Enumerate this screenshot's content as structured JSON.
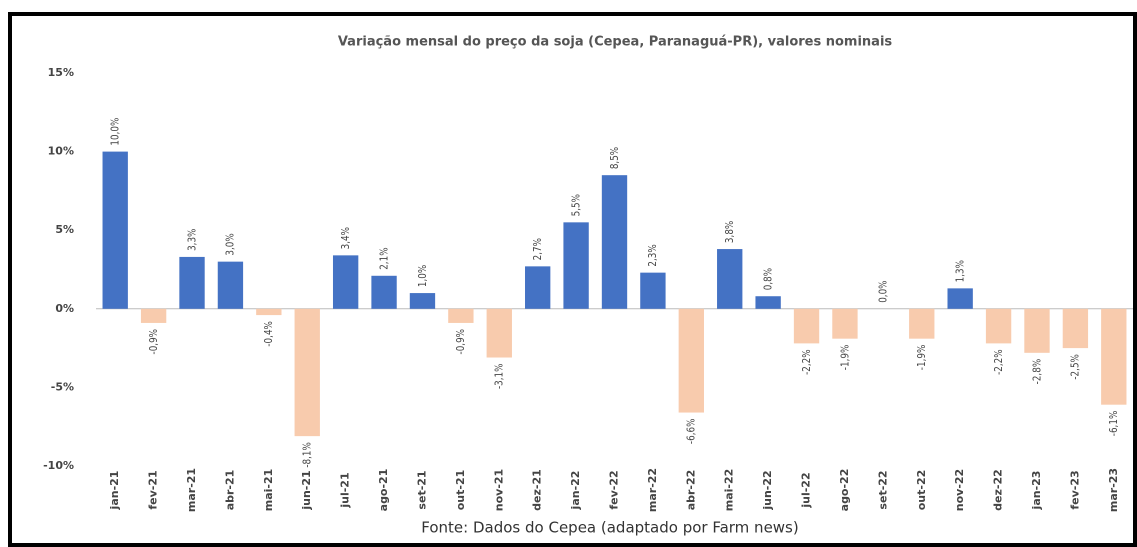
{
  "chart_data": {
    "type": "bar",
    "title": "Variação mensal do preço da soja (Cepea, Paranaguá-PR), valores nominais",
    "source": "Fonte: Dados do Cepea (adaptado por Farm news)",
    "categories": [
      "jan-21",
      "fev-21",
      "mar-21",
      "abr-21",
      "mai-21",
      "jun-21",
      "jul-21",
      "ago-21",
      "set-21",
      "out-21",
      "nov-21",
      "dez-21",
      "jan-22",
      "fev-22",
      "mar-22",
      "abr-22",
      "mai-22",
      "jun-22",
      "jul-22",
      "ago-22",
      "set-22",
      "out-22",
      "nov-22",
      "dez-22",
      "jan-23",
      "fev-23",
      "mar-23"
    ],
    "values": [
      10.0,
      -0.9,
      3.3,
      3.0,
      -0.4,
      -8.1,
      3.4,
      2.1,
      1.0,
      -0.9,
      -3.1,
      2.7,
      5.5,
      8.5,
      2.3,
      -6.6,
      3.8,
      0.8,
      -2.2,
      -1.9,
      0.0,
      -1.9,
      1.3,
      -2.2,
      -2.8,
      -2.5,
      -6.1
    ],
    "value_labels": [
      "10,0%",
      "-0,9%",
      "3,3%",
      "3,0%",
      "-0,4%",
      "-8,1%",
      "3,4%",
      "2,1%",
      "1,0%",
      "-0,9%",
      "-3,1%",
      "2,7%",
      "5,5%",
      "8,5%",
      "2,3%",
      "-6,6%",
      "3,8%",
      "0,8%",
      "-2,2%",
      "-1,9%",
      "0,0%",
      "-1,9%",
      "1,3%",
      "-2,2%",
      "-2,8%",
      "-2,5%",
      "-6,1%"
    ],
    "positive_color": "#4472c4",
    "negative_color": "#f8cbad",
    "ylim": [
      -10,
      15
    ],
    "yticks": [
      {
        "value": -10,
        "label": "-10%"
      },
      {
        "value": -5,
        "label": "-5%"
      },
      {
        "value": 0,
        "label": "0%"
      },
      {
        "value": 5,
        "label": "5%"
      },
      {
        "value": 10,
        "label": "10%"
      },
      {
        "value": 15,
        "label": "15%"
      }
    ],
    "grid": false
  }
}
